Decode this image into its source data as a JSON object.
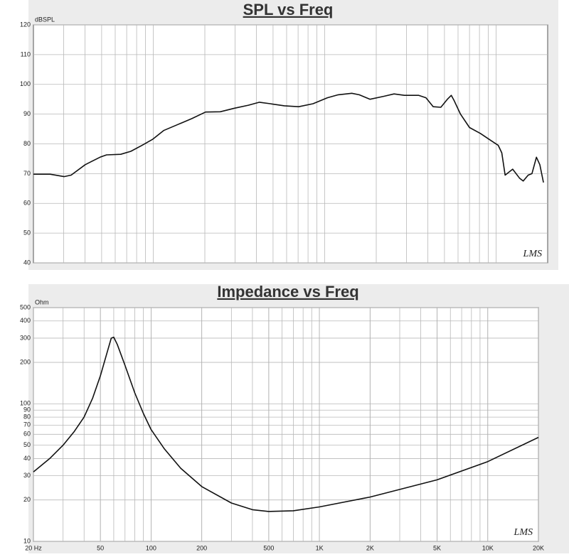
{
  "chart_data": [
    {
      "type": "line",
      "title": "SPL vs Freq",
      "ylabel": "dBSPL",
      "watermark": "LMS",
      "xlog": true,
      "xlim": [
        20,
        20000
      ],
      "ylim": [
        40,
        120
      ],
      "yticks": [
        40,
        50,
        60,
        70,
        80,
        90,
        100,
        110,
        120
      ],
      "grid": true,
      "color": "#111111",
      "x": [
        20,
        25,
        30.2,
        33.2,
        40.1,
        48.9,
        53.4,
        64.6,
        74,
        86,
        99,
        115,
        139,
        168,
        202,
        246,
        298,
        359,
        416,
        482,
        582,
        706,
        855,
        1037,
        1200,
        1440,
        1590,
        1840,
        2220,
        2540,
        2920,
        3540,
        3900,
        4300,
        4760,
        5200,
        5480,
        5700,
        6200,
        7000,
        8100,
        9400,
        10300,
        10800,
        11300,
        12500,
        13700,
        14400,
        15400,
        16200,
        17200,
        18000,
        18900
      ],
      "values": [
        69.8,
        69.8,
        69,
        69.5,
        73,
        75.5,
        76.3,
        76.5,
        77.5,
        79.5,
        81.5,
        84.5,
        86.5,
        88.5,
        90.7,
        90.8,
        92,
        93,
        94,
        93.5,
        92.8,
        92.5,
        93.5,
        95.5,
        96.5,
        97,
        96.5,
        95,
        96,
        96.8,
        96.3,
        96.3,
        95.5,
        92.5,
        92.3,
        95,
        96.3,
        94.5,
        90,
        85.5,
        83.5,
        81,
        79.5,
        77,
        69.5,
        71.5,
        68.5,
        67.5,
        69.5,
        70,
        75.5,
        73,
        67
      ]
    },
    {
      "type": "line",
      "title": "Impedance vs Freq",
      "ylabel": "Ohm",
      "watermark": "LMS",
      "xlog": true,
      "ylog": true,
      "xlim": [
        20,
        20000
      ],
      "xticks": [
        {
          "value": 20,
          "label": "20  Hz"
        },
        50,
        100,
        200,
        500,
        {
          "value": 1000,
          "label": "1K"
        },
        {
          "value": 2000,
          "label": "2K"
        },
        {
          "value": 5000,
          "label": "5K"
        },
        {
          "value": 10000,
          "label": "10K"
        },
        {
          "value": 20000,
          "label": "20K"
        }
      ],
      "ylim": [
        10,
        500
      ],
      "yticks": [
        10,
        20,
        30,
        40,
        50,
        60,
        70,
        80,
        90,
        100,
        200,
        300,
        400,
        500
      ],
      "grid": true,
      "color": "#111111",
      "x": [
        20,
        25,
        30,
        35,
        40,
        45,
        50,
        55,
        58,
        60,
        63,
        70,
        80,
        90,
        100,
        120,
        150,
        200,
        300,
        400,
        500,
        700,
        1000,
        2000,
        5000,
        10000,
        20000
      ],
      "values": [
        32,
        40,
        50,
        63,
        80,
        110,
        160,
        240,
        300,
        305,
        270,
        190,
        120,
        85,
        65,
        47,
        34,
        25,
        19,
        17,
        16.5,
        16.7,
        17.8,
        21,
        28,
        38,
        57
      ]
    }
  ]
}
